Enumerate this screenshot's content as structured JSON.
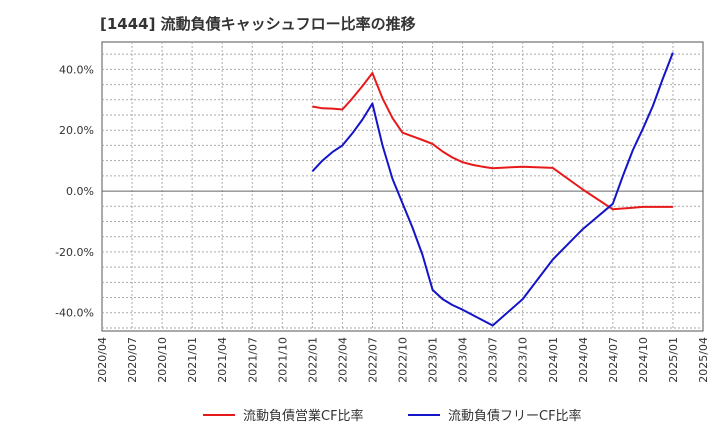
{
  "chart_data": {
    "type": "line",
    "title": "[1444]  流動負債キャッシュフロー比率の推移",
    "xlabel": "",
    "ylabel": "",
    "ylim": [
      -46,
      49
    ],
    "y_ticks": [
      {
        "value": 40,
        "label": "40.0%"
      },
      {
        "value": 20,
        "label": "20.0%"
      },
      {
        "value": 0,
        "label": "0.0%"
      },
      {
        "value": -20,
        "label": "-20.0%"
      },
      {
        "value": -40,
        "label": "-40.0%"
      }
    ],
    "x_ticks": [
      "2020/04",
      "2020/07",
      "2020/10",
      "2021/01",
      "2021/04",
      "2021/07",
      "2021/10",
      "2022/01",
      "2022/04",
      "2022/07",
      "2022/10",
      "2023/01",
      "2023/04",
      "2023/07",
      "2023/10",
      "2024/01",
      "2024/04",
      "2024/07",
      "2024/10",
      "2025/01",
      "2025/04"
    ],
    "grid": true,
    "legend_position": "bottom",
    "series": [
      {
        "name": "流動負債営業CF比率",
        "color": "#e8191a",
        "points": [
          [
            "2022/01",
            27.8
          ],
          [
            "2022/02",
            27.2
          ],
          [
            "2022/03",
            27.1
          ],
          [
            "2022/04",
            26.8
          ],
          [
            "2022/05",
            30.5
          ],
          [
            "2022/06",
            34.5
          ],
          [
            "2022/07",
            38.8
          ],
          [
            "2022/08",
            30.5
          ],
          [
            "2022/09",
            24.0
          ],
          [
            "2022/10",
            19.2
          ],
          [
            "2022/11",
            18.0
          ],
          [
            "2022/12",
            16.8
          ],
          [
            "2023/01",
            15.5
          ],
          [
            "2023/02",
            13.0
          ],
          [
            "2023/03",
            11.0
          ],
          [
            "2023/04",
            9.5
          ],
          [
            "2023/05",
            8.6
          ],
          [
            "2023/06",
            8.0
          ],
          [
            "2023/07",
            7.5
          ],
          [
            "2023/10",
            8.0
          ],
          [
            "2024/01",
            7.6
          ],
          [
            "2024/04",
            0.5
          ],
          [
            "2024/07",
            -6.0
          ],
          [
            "2024/10",
            -5.2
          ],
          [
            "2025/01",
            -5.2
          ]
        ]
      },
      {
        "name": "流動負債フリーCF比率",
        "color": "#1414c8",
        "points": [
          [
            "2022/01",
            6.5
          ],
          [
            "2022/02",
            10.0
          ],
          [
            "2022/03",
            12.8
          ],
          [
            "2022/04",
            15.0
          ],
          [
            "2022/05",
            19.0
          ],
          [
            "2022/06",
            23.5
          ],
          [
            "2022/07",
            28.8
          ],
          [
            "2022/08",
            15.0
          ],
          [
            "2022/09",
            4.0
          ],
          [
            "2022/10",
            -4.0
          ],
          [
            "2022/11",
            -12.0
          ],
          [
            "2022/12",
            -21.0
          ],
          [
            "2023/01",
            -32.5
          ],
          [
            "2023/02",
            -35.5
          ],
          [
            "2023/03",
            -37.5
          ],
          [
            "2023/04",
            -39.0
          ],
          [
            "2023/07",
            -44.2
          ],
          [
            "2023/10",
            -35.5
          ],
          [
            "2024/01",
            -22.5
          ],
          [
            "2024/04",
            -12.5
          ],
          [
            "2024/07",
            -4.2
          ],
          [
            "2024/08",
            5.0
          ],
          [
            "2024/09",
            13.5
          ],
          [
            "2024/10",
            20.5
          ],
          [
            "2024/11",
            28.0
          ],
          [
            "2024/12",
            37.0
          ],
          [
            "2025/01",
            45.5
          ]
        ]
      }
    ]
  }
}
